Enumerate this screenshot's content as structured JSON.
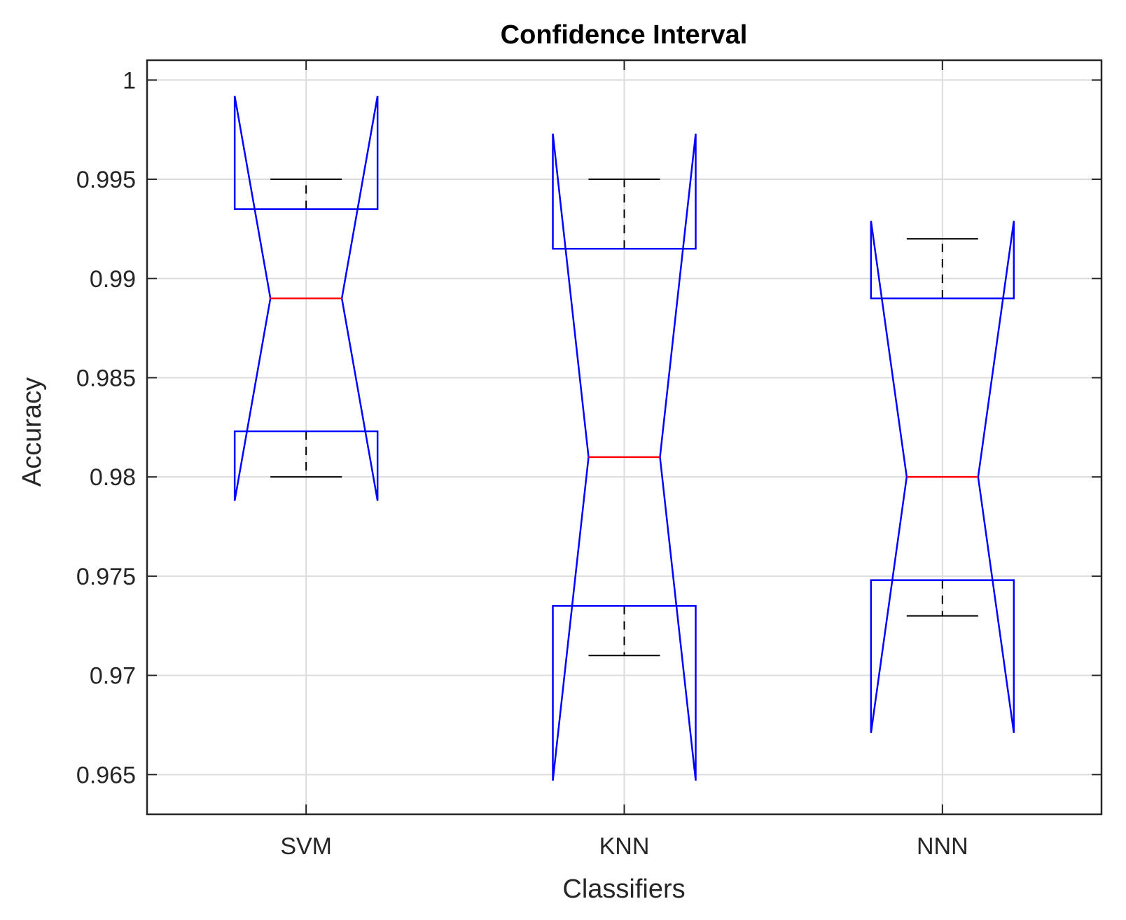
{
  "chart_data": {
    "type": "boxplot",
    "title": "Confidence Interval",
    "xlabel": "Classifiers",
    "ylabel": "Accuracy",
    "ylim": [
      0.963,
      1.001
    ],
    "yticks": [
      0.965,
      0.97,
      0.975,
      0.98,
      0.985,
      0.99,
      0.995,
      1
    ],
    "ytick_labels": [
      "0.965",
      "0.97",
      "0.975",
      "0.98",
      "0.985",
      "0.99",
      "0.995",
      "1"
    ],
    "grid": true,
    "categories": [
      "SVM",
      "KNN",
      "NNN"
    ],
    "boxes": [
      {
        "name": "SVM",
        "whisker_low": 0.98,
        "q1": 0.9823,
        "median": 0.989,
        "q3": 0.9935,
        "whisker_high": 0.995,
        "notch_low": 0.9788,
        "notch_high": 0.9992
      },
      {
        "name": "KNN",
        "whisker_low": 0.971,
        "q1": 0.9735,
        "median": 0.981,
        "q3": 0.9915,
        "whisker_high": 0.995,
        "notch_low": 0.9647,
        "notch_high": 0.9973
      },
      {
        "name": "NNN",
        "whisker_low": 0.973,
        "q1": 0.9748,
        "median": 0.98,
        "q3": 0.989,
        "whisker_high": 0.992,
        "notch_low": 0.9671,
        "notch_high": 0.9929
      }
    ],
    "colors": {
      "box": "#0000ff",
      "median": "#ff0000",
      "whisker": "#000000",
      "grid": "#dcdcdc",
      "axes": "#262626"
    }
  }
}
